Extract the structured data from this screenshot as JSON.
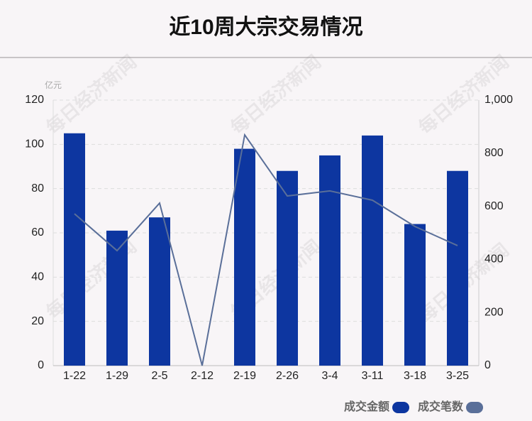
{
  "chart_data": {
    "type": "bar",
    "title": "近10周大宗交易情况",
    "y_unit": "亿元",
    "watermark": "每日经济新闻",
    "categories": [
      "1-22",
      "1-29",
      "2-5",
      "2-12",
      "2-19",
      "2-26",
      "3-4",
      "3-11",
      "3-18",
      "3-25"
    ],
    "series": [
      {
        "name": "成交金额",
        "type": "bar",
        "color": "#0d36a0",
        "axis": "y",
        "values": [
          105,
          61,
          67,
          0,
          98,
          88,
          95,
          104,
          64,
          88
        ]
      },
      {
        "name": "成交笔数",
        "type": "line",
        "color": "#5a6f99",
        "axis": "y2",
        "values": [
          572,
          433,
          612,
          0,
          869,
          639,
          658,
          623,
          524,
          452
        ]
      }
    ],
    "ylim": [
      0,
      120
    ],
    "yticks": [
      0,
      20,
      40,
      60,
      80,
      100,
      120
    ],
    "y2lim": [
      0,
      1000
    ],
    "y2ticks": [
      0,
      200,
      400,
      600,
      800,
      {
        "value": 1000,
        "label": "1,000"
      }
    ],
    "grid": true,
    "legend": "bottom-right"
  }
}
